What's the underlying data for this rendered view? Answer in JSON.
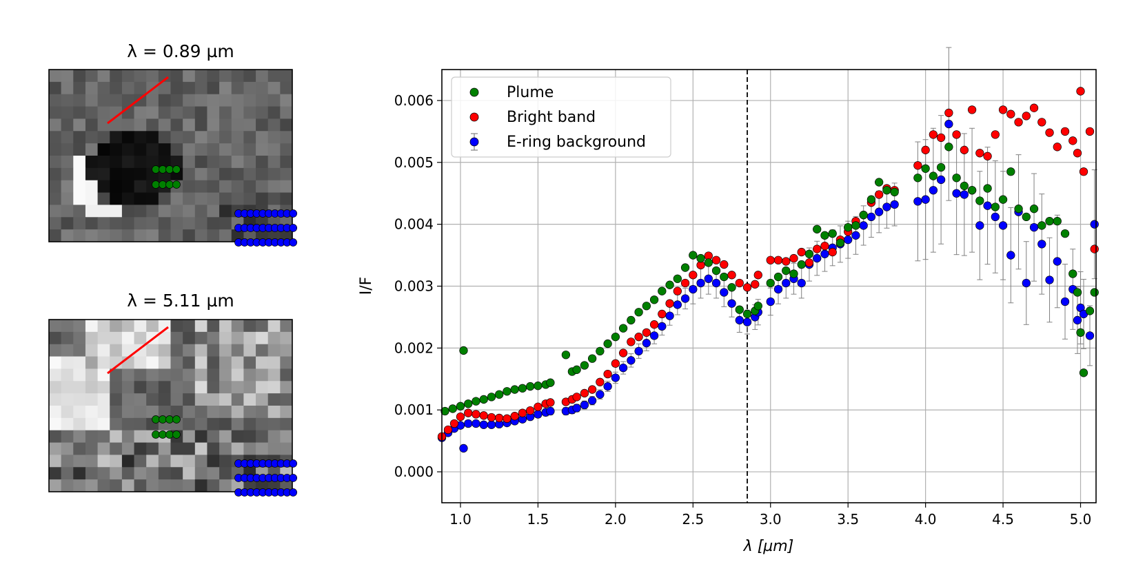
{
  "panels": [
    {
      "title": "λ = 0.89 µm",
      "kind": "dark"
    },
    {
      "title": "λ = 5.11 µm",
      "kind": "bright"
    }
  ],
  "colors": {
    "plume": "#008000",
    "bright_band": "#ff0000",
    "background": "#0000ff",
    "line": "#ff0000",
    "errorbar": "#808080",
    "grid": "#b0b0b0"
  },
  "chart_data": {
    "type": "scatter",
    "xlabel": "λ [µm]",
    "ylabel": "I/F",
    "xlim": [
      0.88,
      5.1
    ],
    "ylim": [
      -0.0005,
      0.0065
    ],
    "xticks": [
      1.0,
      1.5,
      2.0,
      2.5,
      3.0,
      3.5,
      4.0,
      4.5,
      5.0
    ],
    "xtick_labels": [
      "1.0",
      "1.5",
      "2.0",
      "2.5",
      "3.0",
      "3.5",
      "4.0",
      "4.5",
      "5.0"
    ],
    "yticks": [
      0.0,
      0.001,
      0.002,
      0.003,
      0.004,
      0.005,
      0.006
    ],
    "ytick_labels": [
      "0.000",
      "0.001",
      "0.002",
      "0.003",
      "0.004",
      "0.005",
      "0.006"
    ],
    "grid": true,
    "legend_position": "top-left",
    "vline_x": 2.85,
    "series": [
      {
        "name": "Plume",
        "key": "plume",
        "points": [
          [
            0.9,
            0.00098
          ],
          [
            0.95,
            0.00102
          ],
          [
            1.0,
            0.00106
          ],
          [
            1.02,
            0.00196
          ],
          [
            1.05,
            0.0011
          ],
          [
            1.1,
            0.00114
          ],
          [
            1.15,
            0.00117
          ],
          [
            1.2,
            0.00121
          ],
          [
            1.25,
            0.00125
          ],
          [
            1.3,
            0.0013
          ],
          [
            1.35,
            0.00133
          ],
          [
            1.4,
            0.00135
          ],
          [
            1.45,
            0.00138
          ],
          [
            1.5,
            0.00139
          ],
          [
            1.55,
            0.00141
          ],
          [
            1.58,
            0.00144
          ],
          [
            1.68,
            0.00189
          ],
          [
            1.72,
            0.00162
          ],
          [
            1.75,
            0.00165
          ],
          [
            1.8,
            0.00172
          ],
          [
            1.85,
            0.00183
          ],
          [
            1.9,
            0.00195
          ],
          [
            1.95,
            0.00207
          ],
          [
            2.0,
            0.00218
          ],
          [
            2.05,
            0.00232
          ],
          [
            2.1,
            0.00245
          ],
          [
            2.15,
            0.00258
          ],
          [
            2.2,
            0.00268
          ],
          [
            2.25,
            0.00278
          ],
          [
            2.3,
            0.00292
          ],
          [
            2.35,
            0.00302
          ],
          [
            2.4,
            0.00312
          ],
          [
            2.45,
            0.0033
          ],
          [
            2.5,
            0.0035
          ],
          [
            2.55,
            0.00345
          ],
          [
            2.6,
            0.00338
          ],
          [
            2.65,
            0.00325
          ],
          [
            2.7,
            0.00315
          ],
          [
            2.75,
            0.00298
          ],
          [
            2.8,
            0.00262
          ],
          [
            2.85,
            0.00255
          ],
          [
            2.9,
            0.0026
          ],
          [
            2.92,
            0.00268
          ],
          [
            3.0,
            0.00305
          ],
          [
            3.05,
            0.00315
          ],
          [
            3.1,
            0.00325
          ],
          [
            3.15,
            0.0032
          ],
          [
            3.2,
            0.00335
          ],
          [
            3.25,
            0.00352
          ],
          [
            3.3,
            0.00392
          ],
          [
            3.35,
            0.00382
          ],
          [
            3.4,
            0.00385
          ],
          [
            3.45,
            0.0037
          ],
          [
            3.5,
            0.00395
          ],
          [
            3.55,
            0.00398
          ],
          [
            3.6,
            0.00415
          ],
          [
            3.65,
            0.0044
          ],
          [
            3.7,
            0.00468
          ],
          [
            3.75,
            0.00455
          ],
          [
            3.8,
            0.00452
          ],
          [
            3.95,
            0.00475
          ],
          [
            4.0,
            0.0049
          ],
          [
            4.05,
            0.00478
          ],
          [
            4.1,
            0.00492
          ],
          [
            4.15,
            0.00525
          ],
          [
            4.2,
            0.00475
          ],
          [
            4.25,
            0.00462
          ],
          [
            4.3,
            0.00455
          ],
          [
            4.35,
            0.00438
          ],
          [
            4.4,
            0.00458
          ],
          [
            4.45,
            0.00428
          ],
          [
            4.5,
            0.0044
          ],
          [
            4.55,
            0.00485
          ],
          [
            4.6,
            0.00425
          ],
          [
            4.65,
            0.00412
          ],
          [
            4.7,
            0.00425
          ],
          [
            4.75,
            0.00398
          ],
          [
            4.8,
            0.00405
          ],
          [
            4.85,
            0.00405
          ],
          [
            4.9,
            0.00385
          ],
          [
            4.95,
            0.0032
          ],
          [
            4.98,
            0.0029
          ],
          [
            5.0,
            0.00225
          ],
          [
            5.02,
            0.0016
          ],
          [
            5.06,
            0.0026
          ],
          [
            5.09,
            0.0029
          ]
        ]
      },
      {
        "name": "Bright band",
        "key": "bright",
        "points": [
          [
            0.88,
            0.00057
          ],
          [
            0.92,
            0.00068
          ],
          [
            0.96,
            0.00078
          ],
          [
            1.0,
            0.00089
          ],
          [
            1.05,
            0.00095
          ],
          [
            1.1,
            0.00093
          ],
          [
            1.15,
            0.00091
          ],
          [
            1.2,
            0.00088
          ],
          [
            1.25,
            0.00087
          ],
          [
            1.3,
            0.00086
          ],
          [
            1.35,
            0.0009
          ],
          [
            1.4,
            0.00095
          ],
          [
            1.45,
            0.00099
          ],
          [
            1.5,
            0.00105
          ],
          [
            1.55,
            0.0011
          ],
          [
            1.58,
            0.00112
          ],
          [
            1.68,
            0.00113
          ],
          [
            1.72,
            0.00117
          ],
          [
            1.75,
            0.00121
          ],
          [
            1.8,
            0.00127
          ],
          [
            1.85,
            0.00133
          ],
          [
            1.9,
            0.00145
          ],
          [
            1.95,
            0.00158
          ],
          [
            2.0,
            0.00175
          ],
          [
            2.05,
            0.00192
          ],
          [
            2.1,
            0.0021
          ],
          [
            2.15,
            0.00218
          ],
          [
            2.2,
            0.00225
          ],
          [
            2.25,
            0.00238
          ],
          [
            2.3,
            0.00255
          ],
          [
            2.35,
            0.00272
          ],
          [
            2.4,
            0.00292
          ],
          [
            2.45,
            0.00305
          ],
          [
            2.5,
            0.00318
          ],
          [
            2.55,
            0.00334
          ],
          [
            2.6,
            0.00349
          ],
          [
            2.65,
            0.00342
          ],
          [
            2.7,
            0.00335
          ],
          [
            2.75,
            0.00318
          ],
          [
            2.8,
            0.00305
          ],
          [
            2.85,
            0.00298
          ],
          [
            2.9,
            0.00303
          ],
          [
            2.92,
            0.00318
          ],
          [
            3.0,
            0.00342
          ],
          [
            3.05,
            0.00342
          ],
          [
            3.1,
            0.0034
          ],
          [
            3.15,
            0.00345
          ],
          [
            3.2,
            0.00355
          ],
          [
            3.25,
            0.00338
          ],
          [
            3.3,
            0.0036
          ],
          [
            3.35,
            0.00365
          ],
          [
            3.4,
            0.00355
          ],
          [
            3.45,
            0.00375
          ],
          [
            3.5,
            0.00388
          ],
          [
            3.55,
            0.00405
          ],
          [
            3.6,
            0.00415
          ],
          [
            3.65,
            0.00435
          ],
          [
            3.7,
            0.00448
          ],
          [
            3.75,
            0.00458
          ],
          [
            3.8,
            0.00455
          ],
          [
            3.95,
            0.00495
          ],
          [
            4.0,
            0.0052
          ],
          [
            4.05,
            0.00545
          ],
          [
            4.1,
            0.0054
          ],
          [
            4.15,
            0.0058
          ],
          [
            4.2,
            0.00545
          ],
          [
            4.25,
            0.0052
          ],
          [
            4.3,
            0.00585
          ],
          [
            4.35,
            0.00515
          ],
          [
            4.4,
            0.0051
          ],
          [
            4.45,
            0.00545
          ],
          [
            4.5,
            0.00585
          ],
          [
            4.55,
            0.00578
          ],
          [
            4.6,
            0.00565
          ],
          [
            4.65,
            0.00575
          ],
          [
            4.7,
            0.00588
          ],
          [
            4.75,
            0.00565
          ],
          [
            4.8,
            0.00548
          ],
          [
            4.85,
            0.00525
          ],
          [
            4.9,
            0.0055
          ],
          [
            4.95,
            0.00535
          ],
          [
            4.98,
            0.00515
          ],
          [
            5.0,
            0.00615
          ],
          [
            5.02,
            0.00485
          ],
          [
            5.06,
            0.0055
          ],
          [
            5.09,
            0.0036
          ]
        ]
      },
      {
        "name": "E-ring background",
        "key": "background",
        "points": [
          [
            0.88,
            0.00055
          ],
          [
            0.92,
            0.00063
          ],
          [
            0.96,
            0.0007
          ],
          [
            1.0,
            0.00075
          ],
          [
            1.02,
            0.00038
          ],
          [
            1.05,
            0.00078
          ],
          [
            1.1,
            0.00078
          ],
          [
            1.15,
            0.00076
          ],
          [
            1.2,
            0.00076
          ],
          [
            1.25,
            0.00077
          ],
          [
            1.3,
            0.00079
          ],
          [
            1.35,
            0.00082
          ],
          [
            1.4,
            0.00085
          ],
          [
            1.45,
            0.00089
          ],
          [
            1.5,
            0.00093
          ],
          [
            1.55,
            0.00096
          ],
          [
            1.58,
            0.00098
          ],
          [
            1.68,
            0.00098
          ],
          [
            1.72,
            0.001
          ],
          [
            1.75,
            0.00103
          ],
          [
            1.8,
            0.00108
          ],
          [
            1.85,
            0.00115
          ],
          [
            1.9,
            0.00125
          ],
          [
            1.95,
            0.00138
          ],
          [
            2.0,
            0.00152
          ],
          [
            2.05,
            0.00168
          ],
          [
            2.1,
            0.0018
          ],
          [
            2.15,
            0.00195
          ],
          [
            2.2,
            0.00208
          ],
          [
            2.25,
            0.0022
          ],
          [
            2.3,
            0.00235
          ],
          [
            2.35,
            0.00252
          ],
          [
            2.4,
            0.0027
          ],
          [
            2.45,
            0.0028
          ],
          [
            2.5,
            0.00295
          ],
          [
            2.55,
            0.00305
          ],
          [
            2.6,
            0.00312
          ],
          [
            2.65,
            0.00305
          ],
          [
            2.7,
            0.0029
          ],
          [
            2.75,
            0.00272
          ],
          [
            2.8,
            0.00245
          ],
          [
            2.85,
            0.00242
          ],
          [
            2.9,
            0.0025
          ],
          [
            2.92,
            0.00258
          ],
          [
            3.0,
            0.00275
          ],
          [
            3.05,
            0.00295
          ],
          [
            3.1,
            0.00305
          ],
          [
            3.15,
            0.00312
          ],
          [
            3.2,
            0.00305
          ],
          [
            3.25,
            0.00335
          ],
          [
            3.3,
            0.00345
          ],
          [
            3.35,
            0.00352
          ],
          [
            3.4,
            0.00362
          ],
          [
            3.45,
            0.00368
          ],
          [
            3.5,
            0.00375
          ],
          [
            3.55,
            0.00382
          ],
          [
            3.6,
            0.00398
          ],
          [
            3.65,
            0.00412
          ],
          [
            3.7,
            0.0042
          ],
          [
            3.75,
            0.00428
          ],
          [
            3.8,
            0.00432
          ],
          [
            3.95,
            0.00437
          ],
          [
            4.0,
            0.0044
          ],
          [
            4.05,
            0.00455
          ],
          [
            4.1,
            0.00472
          ],
          [
            4.15,
            0.00562
          ],
          [
            4.2,
            0.0045
          ],
          [
            4.25,
            0.00448
          ],
          [
            4.3,
            0.00455
          ],
          [
            4.35,
            0.00398
          ],
          [
            4.4,
            0.0043
          ],
          [
            4.45,
            0.00412
          ],
          [
            4.5,
            0.00398
          ],
          [
            4.55,
            0.0035
          ],
          [
            4.6,
            0.0042
          ],
          [
            4.65,
            0.00305
          ],
          [
            4.7,
            0.00395
          ],
          [
            4.75,
            0.00368
          ],
          [
            4.8,
            0.0031
          ],
          [
            4.85,
            0.0034
          ],
          [
            4.9,
            0.00275
          ],
          [
            4.95,
            0.00295
          ],
          [
            4.98,
            0.00245
          ],
          [
            5.0,
            0.00265
          ],
          [
            5.02,
            0.00255
          ],
          [
            5.06,
            0.0022
          ],
          [
            5.09,
            0.004
          ]
        ]
      }
    ]
  }
}
